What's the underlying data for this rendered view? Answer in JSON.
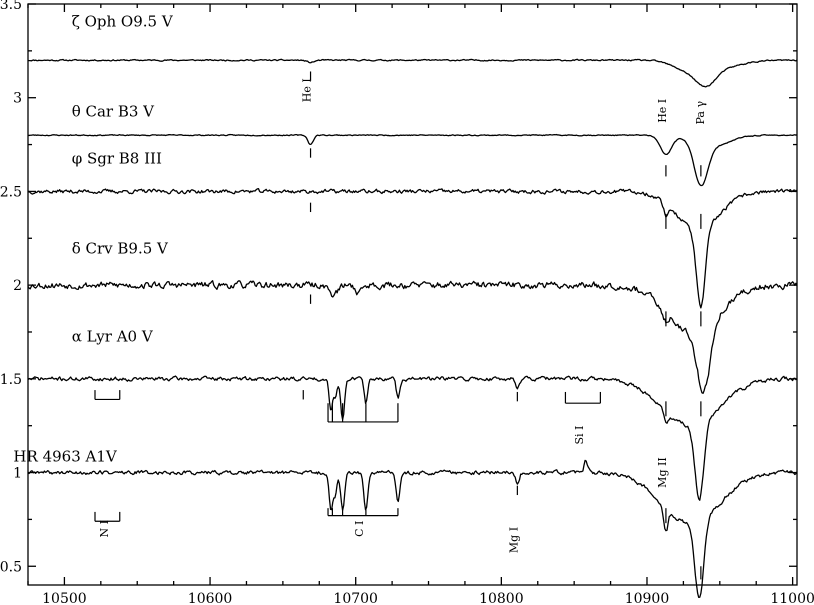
{
  "chart_data": {
    "type": "line",
    "title": "",
    "xlabel": "",
    "ylabel": "",
    "xlim": [
      10475,
      11003
    ],
    "ylim": [
      0.4,
      3.5
    ],
    "xticks": [
      10500,
      10600,
      10700,
      10800,
      10900,
      11000
    ],
    "xtick_labels": [
      "10500",
      "10600",
      "10700",
      "10800",
      "10900",
      "11000"
    ],
    "yticks": [
      0.5,
      1,
      1.5,
      2,
      2.5,
      3,
      3.5
    ],
    "ytick_labels": [
      "0.5",
      "1",
      "1.5",
      "2",
      "2.5",
      "3",
      "3.5"
    ],
    "grid": false,
    "series": [
      {
        "label": "ζ Oph    O9.5 V",
        "label_pos": [
          10505,
          3.38
        ],
        "base": 3.2,
        "noise": 0.004,
        "seed": 11,
        "features": [
          {
            "x": 10669,
            "depth": 0.012,
            "width": 2.5
          },
          {
            "x": 10925,
            "depth": 0.04,
            "width": 9
          },
          {
            "x": 10940,
            "depth": 0.1,
            "width": 7
          },
          {
            "x": 10950,
            "depth": 0.04,
            "width": 14
          }
        ]
      },
      {
        "label": "θ Car    B3 V",
        "label_pos": [
          10505,
          2.9
        ],
        "base": 2.8,
        "noise": 0.003,
        "seed": 23,
        "features": [
          {
            "x": 10669,
            "depth": 0.05,
            "width": 1.8
          },
          {
            "x": 10913,
            "depth": 0.1,
            "width": 4
          },
          {
            "x": 10937,
            "depth": 0.22,
            "width": 4.5
          },
          {
            "x": 10944,
            "depth": 0.06,
            "width": 12
          }
        ]
      },
      {
        "label": "φ Sgr    B8 III",
        "label_pos": [
          10505,
          2.65
        ],
        "base": 2.5,
        "noise": 0.012,
        "seed": 37,
        "features": [
          {
            "x": 10913,
            "depth": 0.06,
            "width": 1.5
          },
          {
            "x": 10937,
            "depth": 0.42,
            "width": 3
          },
          {
            "x": 10935,
            "depth": 0.2,
            "width": 15
          }
        ]
      },
      {
        "label": "δ Crv    B9.5 V",
        "label_pos": [
          10505,
          2.17
        ],
        "base": 2.0,
        "noise": 0.02,
        "seed": 53,
        "features": [
          {
            "x": 10912,
            "depth": 0.06,
            "width": 2
          },
          {
            "x": 10939,
            "depth": 0.33,
            "width": 4.5
          },
          {
            "x": 10932,
            "depth": 0.25,
            "width": 18
          },
          {
            "x": 10685,
            "depth": 0.05,
            "width": 3
          },
          {
            "x": 10702,
            "depth": 0.04,
            "width": 2
          }
        ]
      },
      {
        "label": "α Lyr    A0 V",
        "label_pos": [
          10505,
          1.7
        ],
        "base": 1.5,
        "noise": 0.012,
        "seed": 71,
        "features": [
          {
            "x": 10683,
            "depth": 0.16,
            "width": 1.2
          },
          {
            "x": 10686,
            "depth": 0.1,
            "width": 1.0
          },
          {
            "x": 10691,
            "depth": 0.22,
            "width": 1.3
          },
          {
            "x": 10707,
            "depth": 0.13,
            "width": 1.2
          },
          {
            "x": 10729,
            "depth": 0.1,
            "width": 1.2
          },
          {
            "x": 10811,
            "depth": 0.04,
            "width": 1.2
          },
          {
            "x": 10913,
            "depth": 0.06,
            "width": 1.5
          },
          {
            "x": 10936,
            "depth": 0.4,
            "width": 3
          },
          {
            "x": 10930,
            "depth": 0.25,
            "width": 20
          }
        ]
      },
      {
        "label": "HR 4963     A1V",
        "label_pos": [
          10465,
          1.06
        ],
        "base": 1.0,
        "noise": 0.012,
        "seed": 89,
        "features": [
          {
            "x": 10683,
            "depth": 0.2,
            "width": 1.3
          },
          {
            "x": 10686,
            "depth": 0.12,
            "width": 1.0
          },
          {
            "x": 10691,
            "depth": 0.2,
            "width": 1.3
          },
          {
            "x": 10707,
            "depth": 0.2,
            "width": 1.3
          },
          {
            "x": 10729,
            "depth": 0.16,
            "width": 1.3
          },
          {
            "x": 10811,
            "depth": 0.06,
            "width": 1.2
          },
          {
            "x": 10913,
            "depth": 0.12,
            "width": 1.5
          },
          {
            "x": 10858,
            "depth": -0.06,
            "width": 1.2
          },
          {
            "x": 10936,
            "depth": 0.42,
            "width": 3
          },
          {
            "x": 10930,
            "depth": 0.27,
            "width": 20
          }
        ]
      }
    ],
    "line_marks": [
      {
        "x": 10669,
        "y1": 3.14,
        "y2": 3.09
      },
      {
        "x": 10669,
        "y1": 2.73,
        "y2": 2.68
      },
      {
        "x": 10669,
        "y1": 2.44,
        "y2": 2.39
      },
      {
        "x": 10669,
        "y1": 1.95,
        "y2": 1.9
      },
      {
        "x": 10664,
        "y1": 1.44,
        "y2": 1.39
      },
      {
        "x": 10913,
        "y1": 2.64,
        "y2": 2.58
      },
      {
        "x": 10913,
        "y1": 2.38,
        "y2": 2.3
      },
      {
        "x": 10913,
        "y1": 1.86,
        "y2": 1.78
      },
      {
        "x": 10913,
        "y1": 1.38,
        "y2": 1.3
      },
      {
        "x": 10913,
        "y1": 0.81,
        "y2": 0.73
      },
      {
        "x": 10937,
        "y1": 2.64,
        "y2": 2.58
      },
      {
        "x": 10937,
        "y1": 2.38,
        "y2": 2.3
      },
      {
        "x": 10937,
        "y1": 1.86,
        "y2": 1.78
      },
      {
        "x": 10937,
        "y1": 1.38,
        "y2": 1.3
      },
      {
        "x": 10937,
        "y1": 0.5,
        "y2": 0.43
      },
      {
        "x": 10811,
        "y1": 1.43,
        "y2": 1.38
      },
      {
        "x": 10811,
        "y1": 0.93,
        "y2": 0.88
      }
    ],
    "brackets": [
      {
        "x1": 10521,
        "x2": 10538,
        "y_top": 1.44,
        "y_bar": 1.39,
        "ticks": [
          10521,
          10538
        ]
      },
      {
        "x1": 10521,
        "x2": 10538,
        "y_top": 0.79,
        "y_bar": 0.74,
        "ticks": [
          10521,
          10538
        ]
      },
      {
        "x1": 10681,
        "x2": 10729,
        "y_top": 1.37,
        "y_bar": 1.27,
        "ticks": [
          10681,
          10684,
          10691,
          10707,
          10729
        ]
      },
      {
        "x1": 10681,
        "x2": 10729,
        "y_top": 0.81,
        "y_bar": 0.77,
        "ticks": [
          10681,
          10684,
          10691,
          10707,
          10729
        ]
      },
      {
        "x1": 10844,
        "x2": 10868,
        "y_top": 1.43,
        "y_bar": 1.37,
        "ticks": [
          10844,
          10868
        ]
      }
    ],
    "annotations": [
      {
        "text": "He I",
        "x": 10669,
        "y": 3.04
      },
      {
        "text": "He I",
        "x": 10913,
        "y": 2.93
      },
      {
        "text": "Pa γ",
        "x": 10939,
        "y": 2.92
      },
      {
        "text": "Si I",
        "x": 10856,
        "y": 1.2
      },
      {
        "text": "Mg II",
        "x": 10913,
        "y": 1.0
      },
      {
        "text": "N I",
        "x": 10530,
        "y": 0.7
      },
      {
        "text": "C I",
        "x": 10705,
        "y": 0.7
      },
      {
        "text": "Mg I",
        "x": 10811,
        "y": 0.64
      }
    ]
  }
}
